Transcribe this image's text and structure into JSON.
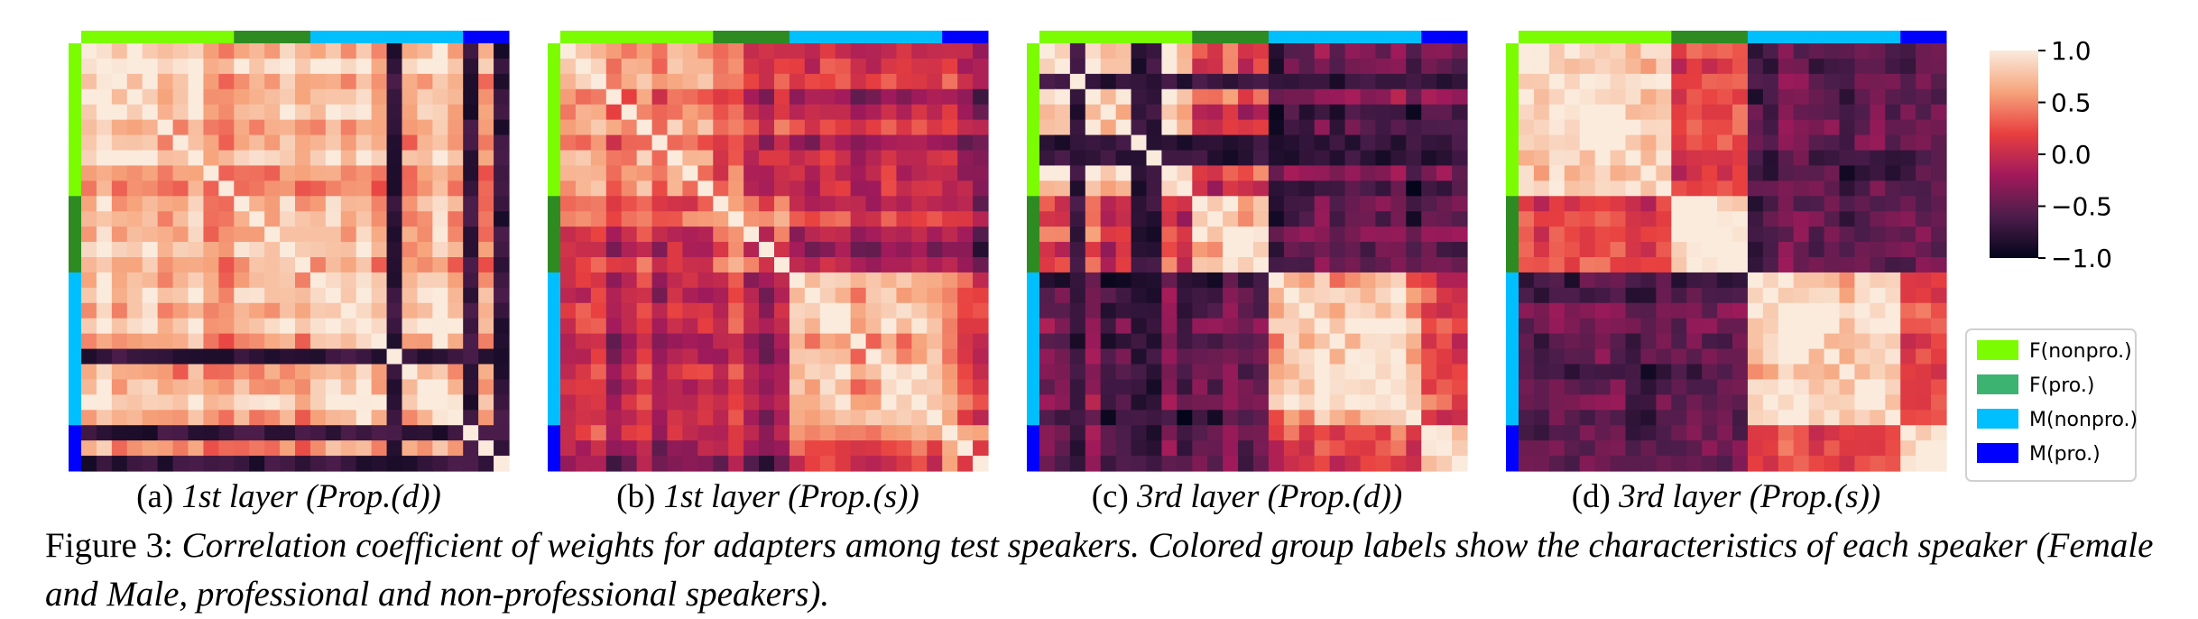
{
  "chart_data": {
    "type": "heatmap",
    "grid": false,
    "speakers_per_group": [
      10,
      5,
      10,
      3
    ],
    "groups": [
      {
        "label": "F(nonpro.)",
        "color": "#7CFC00"
      },
      {
        "label": "F(pro.)",
        "color": "#3CB371"
      },
      {
        "label": "M(nonpro.)",
        "color": "#00BFFF"
      },
      {
        "label": "M(pro.)",
        "color": "#0000FF"
      }
    ],
    "group_bar_colors": [
      "#7CFC00",
      "#2E8B22",
      "#00BFFF",
      "#0000FF"
    ],
    "legend_position": "right",
    "colorbar": {
      "vmin": -1.0,
      "vmax": 1.0,
      "ticks": [
        1.0,
        0.5,
        0.0,
        -0.5,
        -1.0
      ],
      "tick_labels": [
        "1.0",
        "0.5",
        "0.0",
        "−0.5",
        "−1.0"
      ],
      "colors": [
        "#03051a",
        "#4c1d4b",
        "#a11a5b",
        "#e83f3f",
        "#f6a47c",
        "#faebdd"
      ]
    },
    "panels": [
      {
        "label": "(a)",
        "title": "1st layer (Prop.(d))",
        "mean_within": 0.7,
        "mean_between": 0.6,
        "dark_speakers": [
          20,
          25,
          27
        ],
        "spread": 0.5
      },
      {
        "label": "(b)",
        "title": "1st layer (Prop.(s))",
        "mean_within": 0.45,
        "mean_between": -0.2,
        "dark_speakers": [],
        "spread": 0.5
      },
      {
        "label": "(c)",
        "title": "3rd layer (Prop.(d))",
        "mean_within": 0.75,
        "mean_between": -0.55,
        "dark_speakers": [
          2,
          6,
          7
        ],
        "spread": 0.45
      },
      {
        "label": "(d)",
        "title": "3rd layer (Prop.(s))",
        "mean_within": 0.8,
        "mean_between": -0.6,
        "dark_speakers": [],
        "spread": 0.3
      }
    ]
  },
  "caption": {
    "prefix": "Figure 3: ",
    "text": "Correlation coefficient of weights for adapters among test speakers. Colored group labels show the characteristics of each speaker (Female and Male, professional and non-professional speakers)."
  }
}
